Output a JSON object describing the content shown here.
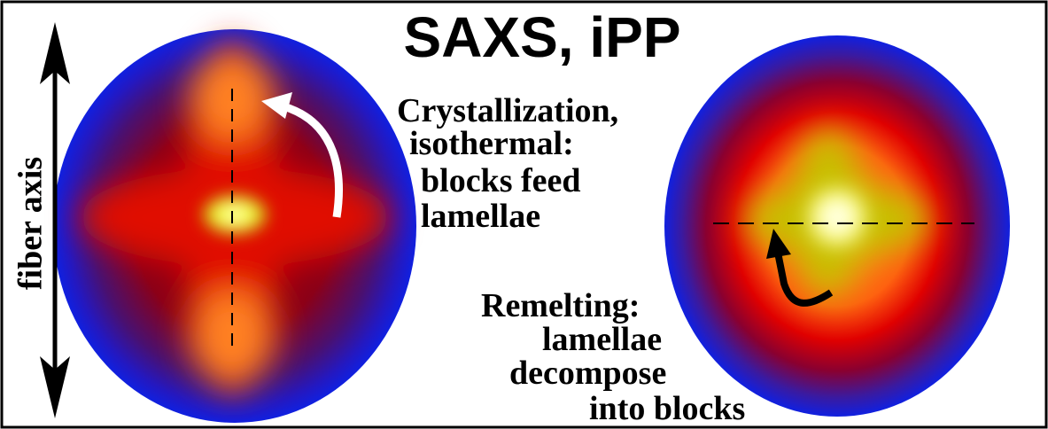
{
  "title": "SAXS, iPP",
  "axis_label": "fiber axis",
  "left_caption": {
    "lines": [
      "Crystallization,",
      "isothermal:",
      "blocks feed",
      "lamellae"
    ]
  },
  "right_caption": {
    "lines": [
      "Remelting:",
      "lamellae",
      "decompose",
      "into blocks"
    ]
  }
}
